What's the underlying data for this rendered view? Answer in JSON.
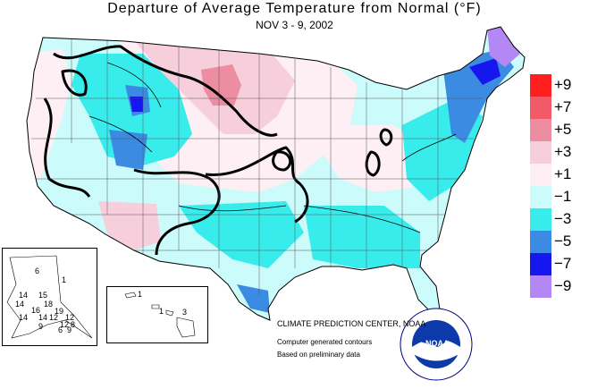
{
  "title": "Departure of Average Temperature from Normal (°F)",
  "subtitle": "NOV 3 - 9, 2002",
  "legend": [
    {
      "label": "+9",
      "color": "#ff1f1f"
    },
    {
      "label": "+7",
      "color": "#f25a69"
    },
    {
      "label": "+5",
      "color": "#ec8da1"
    },
    {
      "label": "+3",
      "color": "#f7cfdc"
    },
    {
      "label": "+1",
      "color": "#fdeff3"
    },
    {
      "label": "−1",
      "color": "#ccfbfb"
    },
    {
      "label": "−3",
      "color": "#39ecec"
    },
    {
      "label": "−5",
      "color": "#3c8be3"
    },
    {
      "label": "−7",
      "color": "#1616ee"
    },
    {
      "label": "−9",
      "color": "#b388f4"
    }
  ],
  "credits": {
    "center": "CLIMATE PREDICTION CENTER, NOAA",
    "line2": "Computer generated contours",
    "line3": "Based on preliminary data"
  },
  "logo": {
    "text": "NOAA"
  },
  "alaska_labels": [
    "6",
    "1",
    "14",
    "14",
    "15",
    "18",
    "19",
    "16",
    "14",
    "12",
    "12",
    "12",
    "9",
    "9",
    "14",
    "6",
    "8"
  ],
  "hawaii_labels": [
    "1",
    "1",
    "3"
  ],
  "colors": {
    "outline": "#000000",
    "background": "#ffffff",
    "state_lines": "#555555"
  }
}
